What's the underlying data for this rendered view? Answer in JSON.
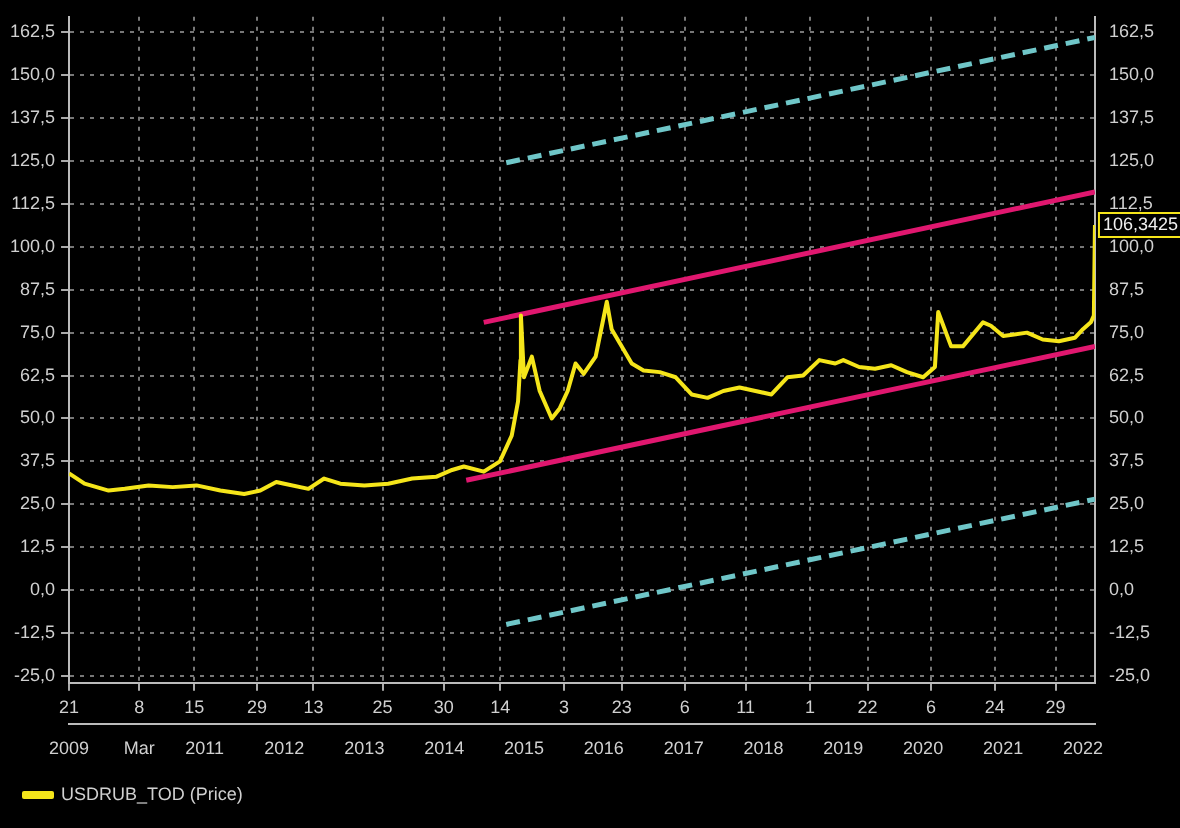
{
  "chart_data": {
    "type": "line",
    "marker": "none",
    "grid": true,
    "legend": "bottom left",
    "xlim": [
      "2009-04-21",
      "2022-02-25"
    ],
    "xticks": [
      {
        "value": "2009-04-21",
        "label": "21"
      },
      {
        "value": "2010-03-08",
        "label": "8"
      },
      {
        "value": "2010-11-15",
        "label": "15"
      },
      {
        "value": "2011-08-29",
        "label": "29"
      },
      {
        "value": "2012-05-13",
        "label": "13"
      },
      {
        "value": "2013-03-25",
        "label": "25"
      },
      {
        "value": "2013-12-30",
        "label": "30"
      },
      {
        "value": "2014-09-14",
        "label": "14"
      },
      {
        "value": "2015-07-03",
        "label": "3"
      },
      {
        "value": "2016-03-23",
        "label": "23"
      },
      {
        "value": "2017-01-06",
        "label": "6"
      },
      {
        "value": "2017-10-11",
        "label": "11"
      },
      {
        "value": "2018-08-01",
        "label": "1"
      },
      {
        "value": "2019-04-22",
        "label": "22"
      },
      {
        "value": "2020-02-06",
        "label": "6"
      },
      {
        "value": "2020-11-24",
        "label": "24"
      },
      {
        "value": "2021-08-29",
        "label": "29"
      }
    ],
    "x2lim": [
      "2009-04-21",
      "2022-02-25"
    ],
    "x2ticks": [
      {
        "value": "2009-04-21",
        "label": "2009"
      },
      {
        "value": "2010-03-08",
        "label": "Mar"
      },
      {
        "value": "2011-01-01",
        "label": "2011"
      },
      {
        "value": "2012-01-01",
        "label": "2012"
      },
      {
        "value": "2013-01-01",
        "label": "2013"
      },
      {
        "value": "2014-01-01",
        "label": "2014"
      },
      {
        "value": "2015-01-01",
        "label": "2015"
      },
      {
        "value": "2016-01-01",
        "label": "2016"
      },
      {
        "value": "2017-01-01",
        "label": "2017"
      },
      {
        "value": "2018-01-01",
        "label": "2018"
      },
      {
        "value": "2019-01-01",
        "label": "2019"
      },
      {
        "value": "2020-01-01",
        "label": "2020"
      },
      {
        "value": "2021-01-01",
        "label": "2021"
      },
      {
        "value": "2022-01-01",
        "label": "2022"
      }
    ],
    "ylim": [
      -27,
      167
    ],
    "yticks": [
      {
        "value": -25,
        "label": "-25,0"
      },
      {
        "value": -12.5,
        "label": "-12,5"
      },
      {
        "value": 0,
        "label": "0,0"
      },
      {
        "value": 12.5,
        "label": "12,5"
      },
      {
        "value": 25,
        "label": "25,0"
      },
      {
        "value": 37.5,
        "label": "37,5"
      },
      {
        "value": 50,
        "label": "50,0"
      },
      {
        "value": 62.5,
        "label": "62,5"
      },
      {
        "value": 75,
        "label": "75,0"
      },
      {
        "value": 87.5,
        "label": "87,5"
      },
      {
        "value": 100,
        "label": "100,0"
      },
      {
        "value": 112.5,
        "label": "112,5"
      },
      {
        "value": 125,
        "label": "125,0"
      },
      {
        "value": 137.5,
        "label": "137,5"
      },
      {
        "value": 150,
        "label": "150,0"
      },
      {
        "value": 162.5,
        "label": "162,5"
      }
    ],
    "y2lim": [
      -27,
      167
    ],
    "y2ticks": [
      {
        "value": -25,
        "label": "-25,0"
      },
      {
        "value": -12.5,
        "label": "-12,5"
      },
      {
        "value": 0,
        "label": "0,0"
      },
      {
        "value": 12.5,
        "label": "12,5"
      },
      {
        "value": 25,
        "label": "25,0"
      },
      {
        "value": 37.5,
        "label": "37,5"
      },
      {
        "value": 50,
        "label": "50,0"
      },
      {
        "value": 62.5,
        "label": "62,5"
      },
      {
        "value": 75,
        "label": "75,0"
      },
      {
        "value": 87.5,
        "label": "87,5"
      },
      {
        "value": 100,
        "label": "100,0"
      },
      {
        "value": 112.5,
        "label": "112,5"
      },
      {
        "value": 125,
        "label": "125,0"
      },
      {
        "value": 137.5,
        "label": "137,5"
      },
      {
        "value": 150,
        "label": "150,0"
      },
      {
        "value": 162.5,
        "label": "162,5"
      }
    ],
    "series": [
      {
        "name": "USDRUB_TOD (Price)",
        "color": "#f5e51a",
        "x": [
          "2009-04-21",
          "2009-07-01",
          "2009-10-19",
          "2010-01-01",
          "2010-04-20",
          "2010-08-08",
          "2010-11-25",
          "2011-03-14",
          "2011-07-01",
          "2011-09-13",
          "2011-11-25",
          "2012-01-01",
          "2012-04-20",
          "2012-07-01",
          "2012-09-13",
          "2013-01-01",
          "2013-04-20",
          "2013-08-08",
          "2013-11-25",
          "2014-02-06",
          "2014-04-01",
          "2014-07-01",
          "2014-09-13",
          "2014-11-06",
          "2014-12-05",
          "2014-12-16",
          "2014-12-18",
          "2015-01-01",
          "2015-02-06",
          "2015-03-14",
          "2015-05-08",
          "2015-06-14",
          "2015-07-20",
          "2015-08-25",
          "2015-10-01",
          "2015-11-25",
          "2016-01-15",
          "2016-02-06",
          "2016-03-14",
          "2016-05-08",
          "2016-07-01",
          "2016-09-13",
          "2016-11-25",
          "2017-02-06",
          "2017-04-20",
          "2017-07-01",
          "2017-09-13",
          "2017-11-25",
          "2018-02-06",
          "2018-04-20",
          "2018-07-01",
          "2018-09-13",
          "2018-11-25",
          "2019-01-01",
          "2019-03-14",
          "2019-05-26",
          "2019-08-08",
          "2019-10-19",
          "2020-01-01",
          "2020-02-24",
          "2020-03-10",
          "2020-05-08",
          "2020-07-01",
          "2020-10-01",
          "2020-11-06",
          "2021-01-01",
          "2021-04-20",
          "2021-07-01",
          "2021-09-13",
          "2021-11-25",
          "2022-01-01",
          "2022-02-06",
          "2022-02-20",
          "2022-02-25"
        ],
        "values": [
          34,
          31,
          29,
          29.5,
          30.5,
          30,
          30.5,
          29,
          28,
          29,
          31.5,
          31,
          29.5,
          32.5,
          31,
          30.5,
          31,
          32.5,
          33,
          35,
          36,
          34.5,
          37.5,
          45,
          55,
          67,
          80,
          62,
          68,
          58,
          50,
          53,
          58,
          66,
          63,
          68,
          84,
          76,
          72,
          66,
          64,
          63.5,
          62,
          57,
          56,
          58,
          59,
          58,
          57,
          62,
          62.5,
          67,
          66,
          67,
          65,
          64.5,
          65.5,
          63.5,
          62,
          65,
          81,
          71,
          71,
          78,
          77,
          74,
          75,
          73,
          72.5,
          73.5,
          76,
          78,
          80,
          106.3425
        ]
      },
      {
        "color": "#e0176f",
        "x": [
          "2014-07-01",
          "2022-02-25"
        ],
        "values": [
          78,
          116
        ]
      },
      {
        "color": "#e0176f",
        "x": [
          "2014-04-12",
          "2022-02-25"
        ],
        "values": [
          32,
          71
        ]
      },
      {
        "color": "#6fc6c8",
        "line_style": "dashed",
        "x": [
          "2014-10-12",
          "2022-02-25"
        ],
        "values": [
          124.5,
          161
        ]
      },
      {
        "color": "#6fc6c8",
        "line_style": "dashed",
        "x": [
          "2014-10-12",
          "2022-02-25"
        ],
        "values": [
          -10,
          26.5
        ]
      }
    ],
    "annotations": [
      {
        "text": "106,3425",
        "x": "2022-02-25",
        "y": 106.3425
      }
    ]
  }
}
